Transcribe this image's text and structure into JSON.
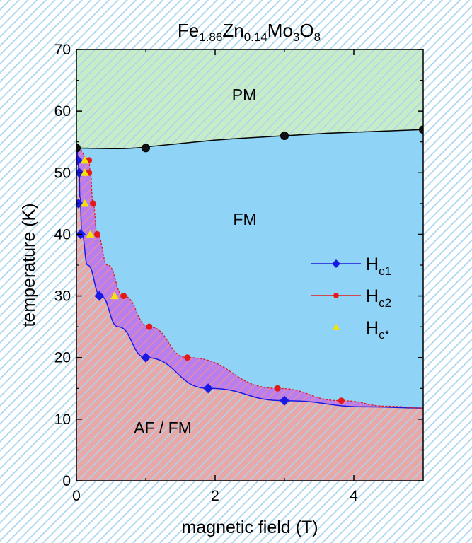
{
  "chart_data": {
    "type": "scatter",
    "title": {
      "base": "Fe",
      "parts": [
        [
          "1.86",
          "Zn"
        ],
        [
          "0.14",
          "Mo"
        ],
        [
          "3",
          "O"
        ],
        [
          "8",
          ""
        ]
      ]
    },
    "xlabel": "magnetic field (T)",
    "ylabel": "temperature (K)",
    "xlim": [
      0,
      5
    ],
    "ylim": [
      0,
      70
    ],
    "xticks": [
      0,
      2,
      4
    ],
    "yticks": [
      0,
      10,
      20,
      30,
      40,
      50,
      60,
      70
    ],
    "legend_position": "middle-right",
    "regions": [
      {
        "name": "PM",
        "color": "#c8ecc8"
      },
      {
        "name": "FM",
        "color": "#8fd3f7"
      },
      {
        "name": "AF / FM",
        "color": "#e8a8a8"
      }
    ],
    "series": [
      {
        "name": "H",
        "sub": "c1",
        "marker": "diamond",
        "color": "#1919e6",
        "points": [
          [
            0.02,
            52
          ],
          [
            0.04,
            50
          ],
          [
            0.03,
            45
          ],
          [
            0.06,
            40
          ],
          [
            0.33,
            30
          ],
          [
            1.0,
            20
          ],
          [
            1.9,
            15
          ],
          [
            3.0,
            13
          ]
        ]
      },
      {
        "name": "H",
        "sub": "c2",
        "marker": "circle",
        "color": "#e61919",
        "points": [
          [
            0.18,
            52
          ],
          [
            0.18,
            50
          ],
          [
            0.24,
            45
          ],
          [
            0.3,
            40
          ],
          [
            0.68,
            30
          ],
          [
            1.05,
            25
          ],
          [
            1.6,
            20
          ],
          [
            2.9,
            15
          ],
          [
            3.82,
            13
          ]
        ]
      },
      {
        "name": "H",
        "sub": "c*",
        "marker": "triangle",
        "color": "#f5e300",
        "points": [
          [
            0.12,
            52
          ],
          [
            0.12,
            50
          ],
          [
            0.12,
            45
          ],
          [
            0.2,
            40
          ],
          [
            0.55,
            30
          ]
        ]
      },
      {
        "name": "",
        "sub": "",
        "marker": "circle",
        "color": "#111111",
        "points": [
          [
            0,
            54
          ],
          [
            1,
            54
          ],
          [
            3,
            56
          ],
          [
            5,
            57
          ]
        ]
      }
    ]
  }
}
